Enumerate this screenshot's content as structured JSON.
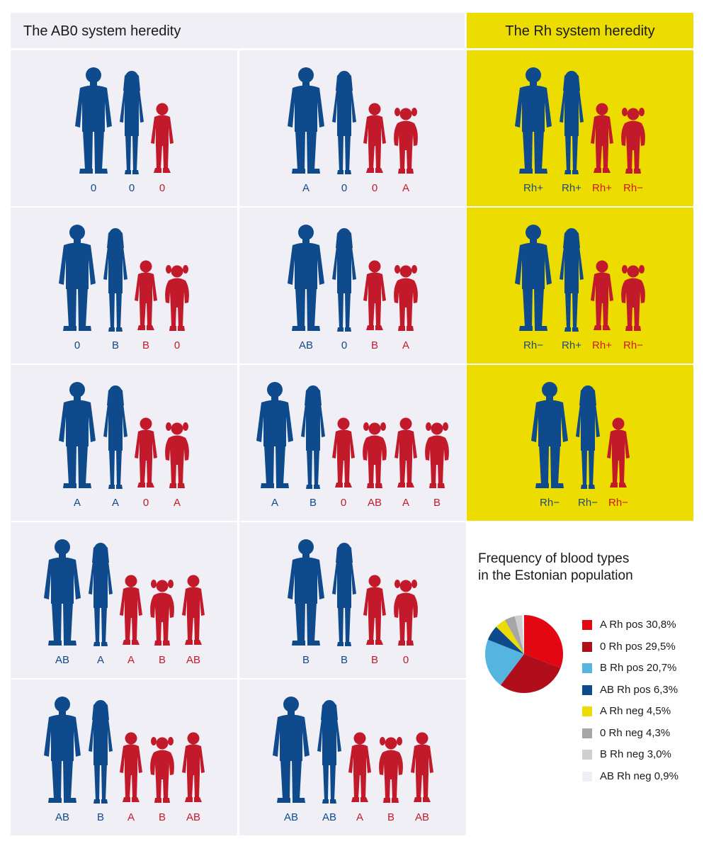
{
  "headers": {
    "abo": "The AB0 system heredity",
    "rh": "The Rh system heredity"
  },
  "colors": {
    "parent": "#0e4a8c",
    "child": "#c21a2b",
    "panel_grey": "#f0eff6",
    "panel_yellow": "#eddc00"
  },
  "abo_panels": [
    {
      "members": [
        {
          "role": "man",
          "type": "0"
        },
        {
          "role": "woman",
          "type": "0"
        },
        {
          "role": "boy",
          "type": "0"
        }
      ]
    },
    {
      "members": [
        {
          "role": "man",
          "type": "A"
        },
        {
          "role": "woman",
          "type": "0"
        },
        {
          "role": "boy",
          "type": "0"
        },
        {
          "role": "girl",
          "type": "A"
        }
      ]
    },
    {
      "members": [
        {
          "role": "man",
          "type": "0"
        },
        {
          "role": "woman",
          "type": "B"
        },
        {
          "role": "boy",
          "type": "B"
        },
        {
          "role": "girl",
          "type": "0"
        }
      ]
    },
    {
      "members": [
        {
          "role": "man",
          "type": "AB"
        },
        {
          "role": "woman",
          "type": "0"
        },
        {
          "role": "boy",
          "type": "B"
        },
        {
          "role": "girl",
          "type": "A"
        }
      ]
    },
    {
      "members": [
        {
          "role": "man",
          "type": "A"
        },
        {
          "role": "woman",
          "type": "A"
        },
        {
          "role": "boy",
          "type": "0"
        },
        {
          "role": "girl",
          "type": "A"
        }
      ]
    },
    {
      "members": [
        {
          "role": "man",
          "type": "A"
        },
        {
          "role": "woman",
          "type": "B"
        },
        {
          "role": "boy",
          "type": "0"
        },
        {
          "role": "girl",
          "type": "AB"
        },
        {
          "role": "boy",
          "type": "A"
        },
        {
          "role": "girl",
          "type": "B"
        }
      ]
    },
    {
      "members": [
        {
          "role": "man",
          "type": "AB"
        },
        {
          "role": "woman",
          "type": "A"
        },
        {
          "role": "boy",
          "type": "A"
        },
        {
          "role": "girl",
          "type": "B"
        },
        {
          "role": "boy",
          "type": "AB"
        }
      ]
    },
    {
      "members": [
        {
          "role": "man",
          "type": "B"
        },
        {
          "role": "woman",
          "type": "B"
        },
        {
          "role": "boy",
          "type": "B"
        },
        {
          "role": "girl",
          "type": "0"
        }
      ]
    },
    {
      "members": [
        {
          "role": "man",
          "type": "AB"
        },
        {
          "role": "woman",
          "type": "B"
        },
        {
          "role": "boy",
          "type": "A"
        },
        {
          "role": "girl",
          "type": "B"
        },
        {
          "role": "boy",
          "type": "AB"
        }
      ]
    },
    {
      "members": [
        {
          "role": "man",
          "type": "AB"
        },
        {
          "role": "woman",
          "type": "AB"
        },
        {
          "role": "boy",
          "type": "A"
        },
        {
          "role": "girl",
          "type": "B"
        },
        {
          "role": "boy",
          "type": "AB"
        }
      ]
    }
  ],
  "rh_panels": [
    {
      "members": [
        {
          "role": "man",
          "type": "Rh+"
        },
        {
          "role": "woman",
          "type": "Rh+"
        },
        {
          "role": "boy",
          "type": "Rh+"
        },
        {
          "role": "girl",
          "type": "Rh−"
        }
      ]
    },
    {
      "members": [
        {
          "role": "man",
          "type": "Rh−"
        },
        {
          "role": "woman",
          "type": "Rh+"
        },
        {
          "role": "boy",
          "type": "Rh+"
        },
        {
          "role": "girl",
          "type": "Rh−"
        }
      ]
    },
    {
      "members": [
        {
          "role": "man",
          "type": "Rh−"
        },
        {
          "role": "woman",
          "type": "Rh−"
        },
        {
          "role": "boy",
          "type": "Rh−"
        }
      ]
    }
  ],
  "chart_data": {
    "type": "pie",
    "title": "Frequency of blood types\nin the Estonian population",
    "title_lines": [
      "Frequency of blood types",
      "in the Estonian population"
    ],
    "legend_placement": "right",
    "slices": [
      {
        "label": "A Rh pos 30,8%",
        "name": "A Rh pos",
        "value": 30.8,
        "color": "#e30613"
      },
      {
        "label": "0 Rh pos 29,5%",
        "name": "0 Rh pos",
        "value": 29.5,
        "color": "#b10e1c"
      },
      {
        "label": "B Rh pos 20,7%",
        "name": "B Rh pos",
        "value": 20.7,
        "color": "#55b4e0"
      },
      {
        "label": "AB Rh pos 6,3%",
        "name": "AB Rh pos",
        "value": 6.3,
        "color": "#0e4a8c"
      },
      {
        "label": "A Rh neg 4,5%",
        "name": "A Rh neg",
        "value": 4.5,
        "color": "#eddc00"
      },
      {
        "label": "0 Rh neg 4,3%",
        "name": "0 Rh neg",
        "value": 4.3,
        "color": "#a6a6a6"
      },
      {
        "label": "B Rh neg 3,0%",
        "name": "B Rh neg",
        "value": 3.0,
        "color": "#cfcfcf"
      },
      {
        "label": "AB Rh neg 0,9%",
        "name": "AB Rh neg",
        "value": 0.9,
        "color": "#f0eff6"
      }
    ]
  }
}
